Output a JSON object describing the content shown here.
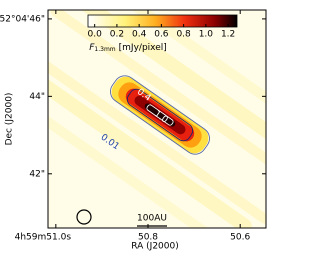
{
  "chart_data": {
    "type": "image",
    "xlabel": "RA (J2000)",
    "ylabel": "Dec (J2000)",
    "xlim": [
      51.017,
      50.544
    ],
    "xticks": [
      {
        "value": 51.0,
        "label": "4h59m51.0s"
      },
      {
        "value": 50.8,
        "label": "50.8"
      },
      {
        "value": 50.6,
        "label": "50.6"
      }
    ],
    "ylim": [
      40.6,
      46.23
    ],
    "yticks": [
      {
        "value": 46,
        "label": "52°04'46\""
      },
      {
        "value": 44,
        "label": "44\""
      },
      {
        "value": 42,
        "label": "42\""
      }
    ],
    "colorbar": {
      "label": "F",
      "label_sub": "1.3mm",
      "label_unit": "[mJy/pixel]",
      "clim": [
        -0.06,
        1.28
      ],
      "ticks": [
        {
          "value": 0,
          "label": "0.0"
        },
        {
          "value": 0.2,
          "label": "0.2"
        },
        {
          "value": 0.4,
          "label": "0.4"
        },
        {
          "value": 0.6,
          "label": "0.6"
        },
        {
          "value": 0.8,
          "label": "0.8"
        },
        {
          "value": 1,
          "label": "1.0"
        },
        {
          "value": 1.2,
          "label": "1.2"
        }
      ]
    },
    "contours": [
      0.01,
      0.4,
      {
        "value": 1,
        "label": "1.0"
      }
    ],
    "scalebar": "100AU"
  }
}
